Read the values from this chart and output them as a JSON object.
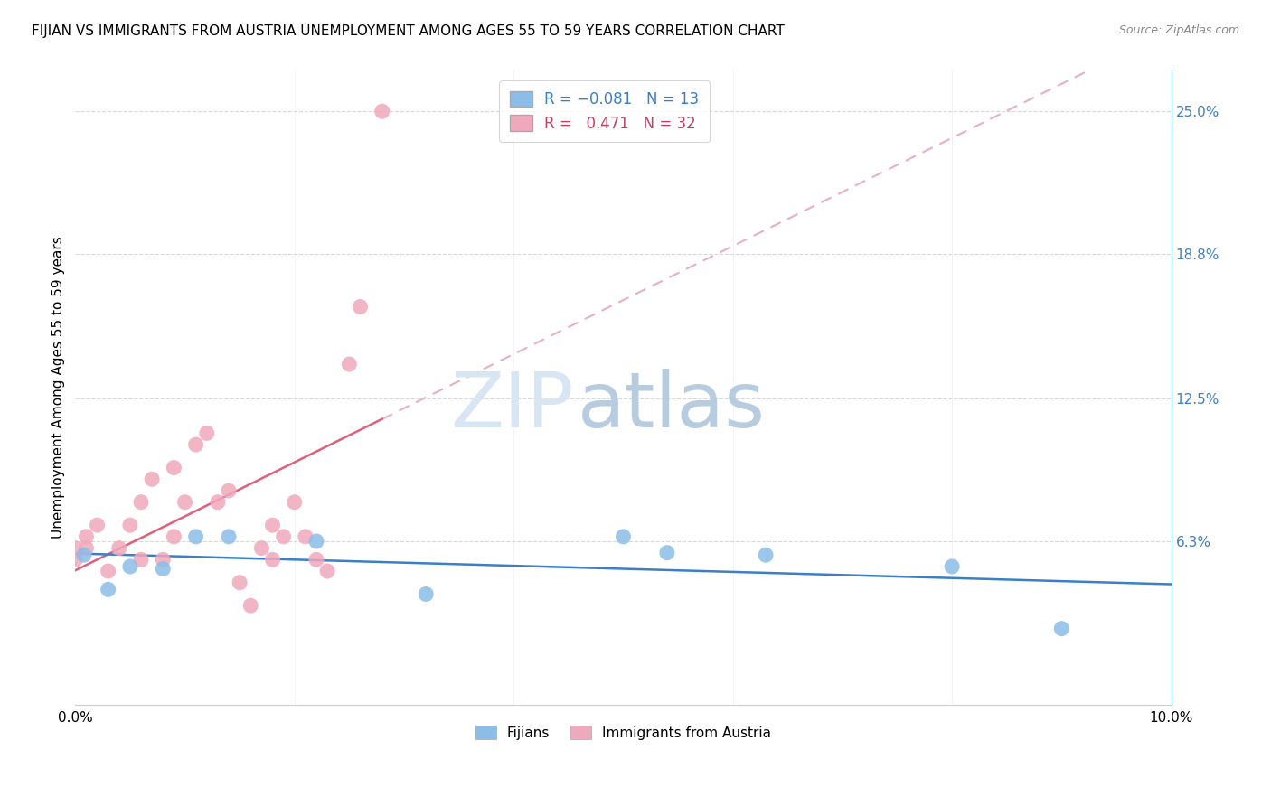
{
  "title": "FIJIAN VS IMMIGRANTS FROM AUSTRIA UNEMPLOYMENT AMONG AGES 55 TO 59 YEARS CORRELATION CHART",
  "source": "Source: ZipAtlas.com",
  "ylabel": "Unemployment Among Ages 55 to 59 years",
  "xlim": [
    0.0,
    0.1
  ],
  "ylim": [
    -0.008,
    0.268
  ],
  "fijian_color": "#8bbde8",
  "austria_color": "#f0a8bc",
  "fijian_line_color": "#3d7fc4",
  "austria_line_color": "#e0607a",
  "austria_dash_color": "#e8b0bc",
  "fijian_R": -0.081,
  "fijian_N": 13,
  "austria_R": 0.471,
  "austria_N": 32,
  "watermark_zip_color": "#d8e5f2",
  "watermark_atlas_color": "#b8cce0",
  "background_color": "#ffffff",
  "grid_color": "#d8d8d8",
  "title_fontsize": 11,
  "axis_label_fontsize": 11,
  "fijian_x": [
    0.0008,
    0.003,
    0.005,
    0.008,
    0.011,
    0.014,
    0.022,
    0.032,
    0.05,
    0.054,
    0.063,
    0.08,
    0.09
  ],
  "fijian_y": [
    0.057,
    0.042,
    0.052,
    0.051,
    0.065,
    0.065,
    0.063,
    0.04,
    0.065,
    0.058,
    0.057,
    0.052,
    0.025
  ],
  "austria_x": [
    0.0,
    0.0,
    0.001,
    0.001,
    0.002,
    0.003,
    0.004,
    0.005,
    0.006,
    0.006,
    0.007,
    0.008,
    0.009,
    0.009,
    0.01,
    0.011,
    0.012,
    0.013,
    0.014,
    0.015,
    0.016,
    0.017,
    0.018,
    0.018,
    0.019,
    0.02,
    0.021,
    0.022,
    0.023,
    0.025,
    0.026,
    0.028
  ],
  "austria_y": [
    0.055,
    0.06,
    0.06,
    0.065,
    0.07,
    0.05,
    0.06,
    0.07,
    0.055,
    0.08,
    0.09,
    0.055,
    0.095,
    0.065,
    0.08,
    0.105,
    0.11,
    0.08,
    0.085,
    0.045,
    0.035,
    0.06,
    0.07,
    0.055,
    0.065,
    0.08,
    0.065,
    0.055,
    0.05,
    0.14,
    0.165,
    0.25
  ],
  "ytick_vals": [
    0.063,
    0.125,
    0.188,
    0.25
  ]
}
